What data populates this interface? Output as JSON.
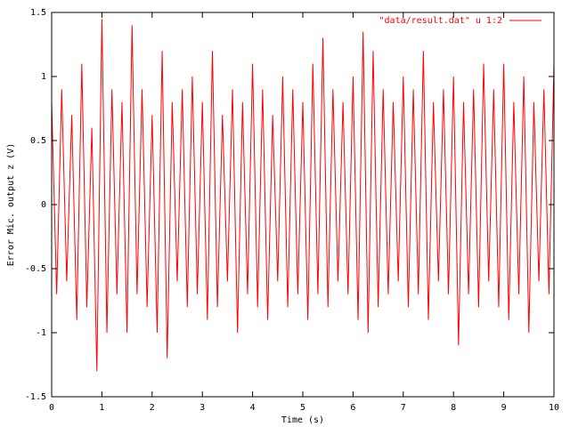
{
  "chart_data": {
    "type": "line",
    "x_label": "Time (s)",
    "y_label": "Error Mic. output z (V)",
    "x": [
      0,
      0.1,
      0.2,
      0.3,
      0.4,
      0.5,
      0.6,
      0.7,
      0.8,
      0.9,
      1,
      1.1,
      1.2,
      1.3,
      1.4,
      1.5,
      1.6,
      1.7,
      1.8,
      1.9,
      2,
      2.1,
      2.2,
      2.3,
      2.4,
      2.5,
      2.6,
      2.7,
      2.8,
      2.9,
      3,
      3.1,
      3.2,
      3.3,
      3.4,
      3.5,
      3.6,
      3.7,
      3.8,
      3.9,
      4,
      4.1,
      4.2,
      4.3,
      4.4,
      4.5,
      4.6,
      4.7,
      4.8,
      4.9,
      5,
      5.1,
      5.2,
      5.3,
      5.4,
      5.5,
      5.6,
      5.7,
      5.8,
      5.9,
      6,
      6.1,
      6.2,
      6.3,
      6.4,
      6.5,
      6.6,
      6.7,
      6.8,
      6.9,
      7,
      7.1,
      7.2,
      7.3,
      7.4,
      7.5,
      7.6,
      7.7,
      7.8,
      7.9,
      8,
      8.1,
      8.2,
      8.3,
      8.4,
      8.5,
      8.6,
      8.7,
      8.8,
      8.9,
      9,
      9.1,
      9.2,
      9.3,
      9.4,
      9.5,
      9.6,
      9.7,
      9.8,
      9.9,
      10
    ],
    "series": [
      {
        "name": "\"data/result.dat\" u 1:2",
        "color": "#ff0000",
        "values": [
          0.8,
          -0.7,
          0.9,
          -0.6,
          0.7,
          -0.9,
          1.1,
          -0.8,
          0.6,
          -1.3,
          1.45,
          -1.0,
          0.9,
          -0.7,
          0.8,
          -1.0,
          1.4,
          -0.7,
          0.9,
          -0.8,
          0.7,
          -1.0,
          1.2,
          -1.2,
          0.8,
          -0.6,
          0.9,
          -0.8,
          1.0,
          -0.7,
          0.8,
          -0.9,
          1.2,
          -0.8,
          0.7,
          -0.6,
          0.9,
          -1.0,
          0.8,
          -0.7,
          1.1,
          -0.8,
          0.9,
          -0.9,
          0.7,
          -0.6,
          1.0,
          -0.8,
          0.9,
          -0.7,
          0.8,
          -0.9,
          1.1,
          -0.7,
          1.3,
          -0.8,
          0.9,
          -0.6,
          0.8,
          -0.7,
          1.0,
          -0.9,
          1.35,
          -1.0,
          1.2,
          -0.8,
          0.9,
          -0.7,
          0.8,
          -0.6,
          1.0,
          -0.8,
          0.9,
          -0.7,
          1.2,
          -0.9,
          0.8,
          -0.6,
          0.9,
          -0.7,
          1.0,
          -1.1,
          0.8,
          -0.7,
          0.9,
          -0.8,
          1.1,
          -0.6,
          0.9,
          -0.8,
          1.1,
          -0.9,
          0.8,
          -0.7,
          1.0,
          -1.0,
          0.8,
          -0.6,
          0.9,
          -0.7,
          1.1
        ]
      }
    ],
    "xlim": [
      0,
      10
    ],
    "xticks": [
      0,
      1,
      2,
      3,
      4,
      5,
      6,
      7,
      8,
      9,
      10
    ],
    "ylim": [
      -1.5,
      1.5
    ],
    "yticks": [
      -1.5,
      -1,
      -0.5,
      0,
      0.5,
      1,
      1.5
    ],
    "legend": "top-right"
  }
}
